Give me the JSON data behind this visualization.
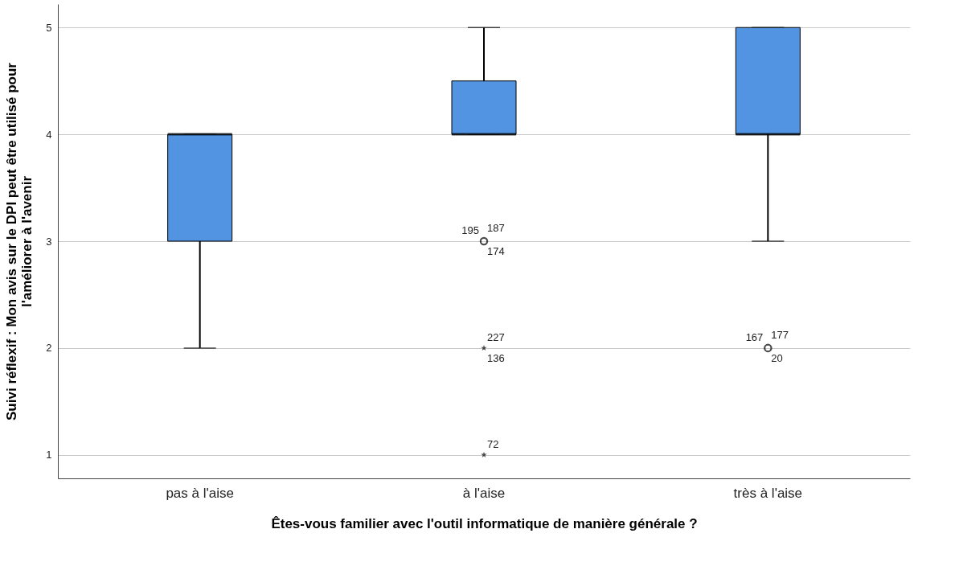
{
  "chart_data": {
    "type": "box",
    "xlabel": "Êtes-vous familier avec l'outil informatique de manière générale ?",
    "ylabel": "Suivi réflexif : Mon avis sur le DPI peut être utilisé pour\nl'améliorer à l'avenir",
    "categories": [
      "pas à l'aise",
      "à l'aise",
      "très à l'aise"
    ],
    "boxes": [
      {
        "low": 2,
        "q1": 3,
        "median": 4,
        "q3": 4,
        "high": 4
      },
      {
        "low": 4,
        "q1": 4,
        "median": 4,
        "q3": 4.5,
        "high": 5
      },
      {
        "low": 3,
        "q1": 4,
        "median": 4,
        "q3": 5,
        "high": 5
      }
    ],
    "color": "#5294e2",
    "series": [
      {
        "type": "scatter",
        "color": "#000000",
        "marker": "star",
        "x": [
          "à l'aise",
          "à l'aise"
        ],
        "values": [
          2,
          1
        ]
      },
      {
        "type": "scatter",
        "color": "#000000",
        "marker": "circle",
        "x": [
          "à l'aise",
          "très à l'aise"
        ],
        "values": [
          3,
          2
        ]
      }
    ],
    "ylim": [
      0.78,
      5.22
    ],
    "yticks": [
      1,
      2,
      3,
      4,
      5
    ],
    "grid": "y",
    "annotations": [
      {
        "text": "195",
        "x": "à l'aise",
        "y": 3
      },
      {
        "text": "187",
        "x": "à l'aise",
        "y": 3
      },
      {
        "text": "174",
        "x": "à l'aise",
        "y": 3
      },
      {
        "text": "227",
        "x": "à l'aise",
        "y": 2
      },
      {
        "text": "136",
        "x": "à l'aise",
        "y": 2
      },
      {
        "text": "72",
        "x": "à l'aise",
        "y": 1
      },
      {
        "text": "167",
        "x": "très à l'aise",
        "y": 2
      },
      {
        "text": "177",
        "x": "très à l'aise",
        "y": 2
      },
      {
        "text": "20",
        "x": "très à l'aise",
        "y": 2
      }
    ]
  }
}
